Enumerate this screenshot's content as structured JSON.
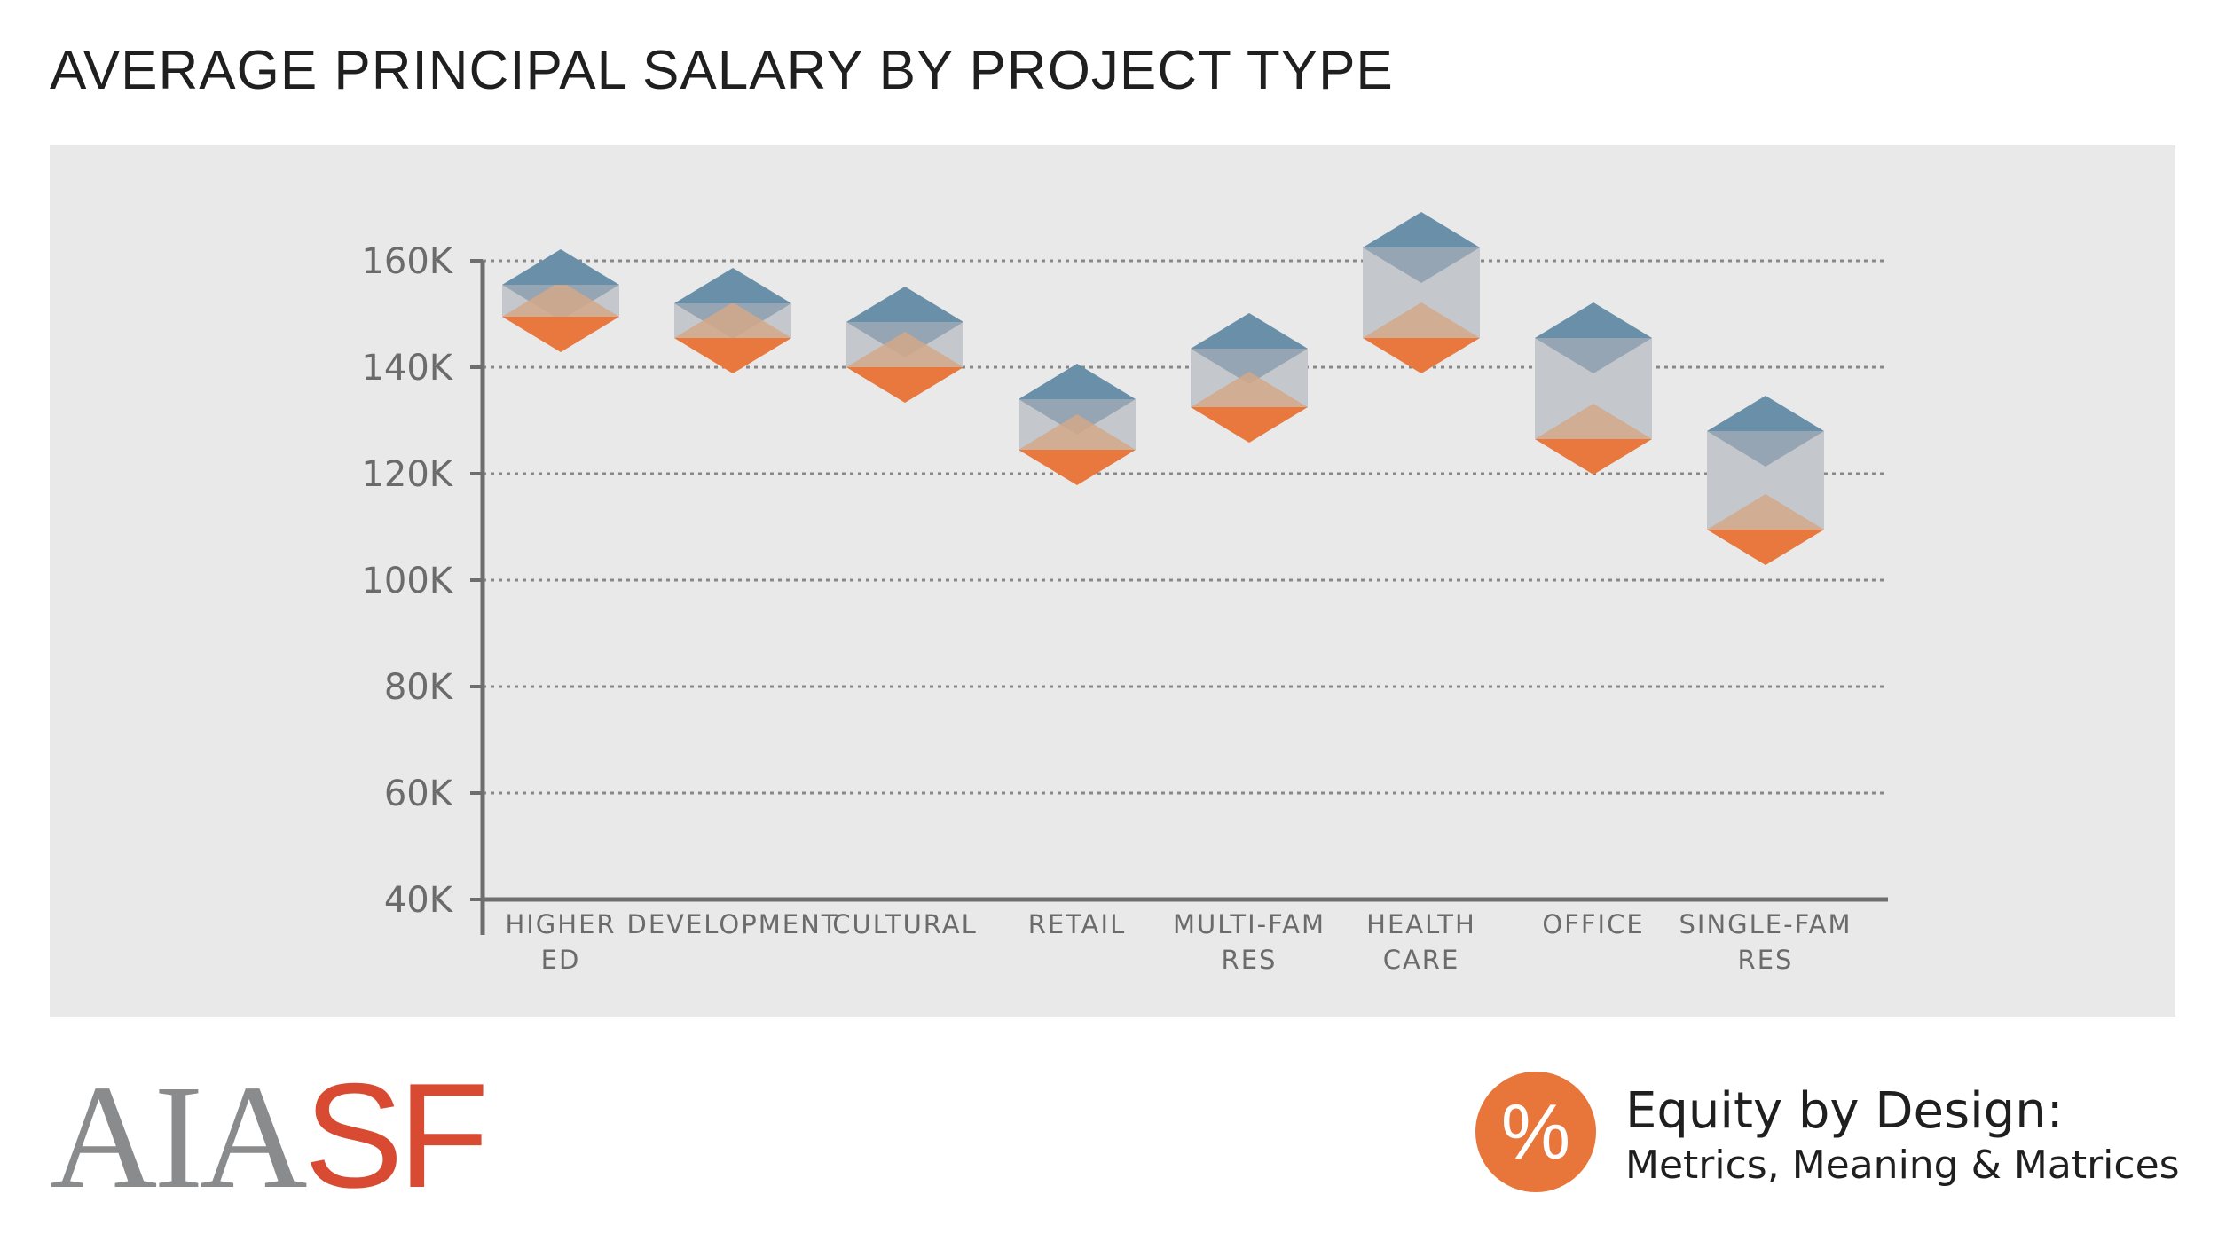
{
  "header": {
    "title": "AVERAGE PRINCIPAL SALARY BY PROJECT TYPE"
  },
  "chart_data": {
    "type": "range",
    "title": "AVERAGE PRINCIPAL SALARY BY PROJECT TYPE",
    "categories": [
      [
        "HIGHER",
        "ED"
      ],
      [
        "DEVELOPMENT"
      ],
      [
        "CULTURAL"
      ],
      [
        "RETAIL"
      ],
      [
        "MULTI-FAM",
        "RES"
      ],
      [
        "HEALTH",
        "CARE"
      ],
      [
        "OFFICE"
      ],
      [
        "SINGLE-FAM",
        "RES"
      ]
    ],
    "series": [
      {
        "values": [
          155500,
          152000,
          148500,
          134000,
          143500,
          162500,
          145500,
          128000
        ]
      },
      {
        "values": [
          149500,
          145500,
          140000,
          124500,
          132500,
          145500,
          126500,
          109500
        ]
      }
    ],
    "yticks": [
      "40K",
      "60K",
      "80K",
      "100K",
      "120K",
      "140K",
      "160K"
    ],
    "ytick_values": [
      40000,
      60000,
      80000,
      100000,
      120000,
      140000,
      160000
    ],
    "ylim": [
      40000,
      160000
    ],
    "grid": true,
    "colors": {
      "upper": "#6a8fa8",
      "upper_dark": "#8e9fae",
      "lower": "#e8783e",
      "lower_light": "#d4a88a",
      "box": "#c4c8cc",
      "grid": "#888888",
      "axis": "#6e6e6e",
      "tick_text": "#6b6b6b"
    }
  },
  "footer": {
    "logo_aia": "AIA",
    "logo_sf": "SF",
    "badge_symbol": "%",
    "equity_title": "Equity by Design:",
    "equity_subtitle": "Metrics, Meaning & Matrices"
  }
}
